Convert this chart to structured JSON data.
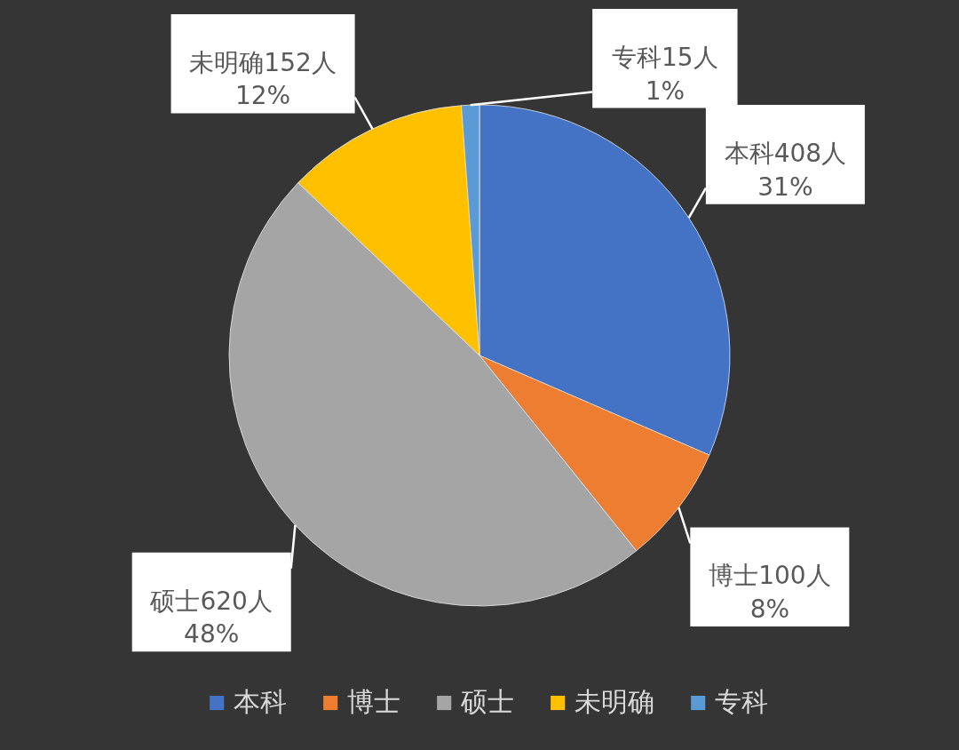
{
  "chart_data": {
    "type": "pie",
    "categories": [
      "本科",
      "博士",
      "硕士",
      "未明确",
      "专科"
    ],
    "values": [
      408,
      100,
      620,
      152,
      15
    ],
    "colors": [
      "#4472c4",
      "#ed7d31",
      "#a5a5a5",
      "#ffc000",
      "#5b9bd5"
    ],
    "value_labels": [
      "本科408人\n31%",
      "博士100人\n8%",
      "硕士620人\n48%",
      "未明确152人\n12%",
      "专科15人\n1%"
    ],
    "legend": "bottom"
  }
}
